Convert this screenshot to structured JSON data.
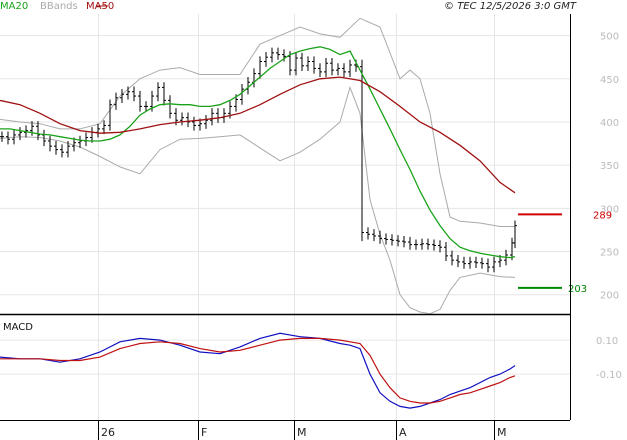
{
  "header": {
    "legend": [
      {
        "name": "MA20",
        "color": "#1aa31a"
      },
      {
        "name": "BBands",
        "color": "#aaaaaa"
      },
      {
        "name": "MA50",
        "color": "#a01010"
      }
    ],
    "copyright": "© TEC 12/5/2026 3:0 GMT"
  },
  "chart_data": [
    {
      "type": "line",
      "panel": "price",
      "y_ticks": [
        "500",
        "450",
        "400",
        "350",
        "300",
        "250",
        "200"
      ],
      "ylim": [
        180,
        525
      ],
      "x_labels": [
        "26",
        "F",
        "M",
        "A",
        "M"
      ],
      "markers": [
        {
          "label": "289",
          "value": 293,
          "color": "#cc0000"
        },
        {
          "label": "203",
          "value": 208,
          "color": "#008800"
        }
      ],
      "series": [
        {
          "role": "ma20",
          "color": "#1aa31a",
          "x": [
            0,
            10,
            20,
            30,
            40,
            50,
            60,
            70,
            80,
            90,
            100,
            110,
            120,
            130,
            140,
            150,
            160,
            170,
            180,
            190,
            200,
            210,
            220,
            230,
            240,
            250,
            260,
            270,
            280,
            290,
            300,
            310,
            320,
            330,
            340,
            350,
            360,
            370,
            380,
            390,
            400,
            410,
            420,
            430,
            440,
            450,
            460,
            470,
            480,
            490,
            500,
            510,
            515
          ],
          "values": [
            392,
            392,
            390,
            388,
            386,
            385,
            383,
            381,
            379,
            378,
            378,
            380,
            385,
            395,
            408,
            415,
            420,
            421,
            420,
            420,
            418,
            418,
            420,
            425,
            432,
            442,
            452,
            462,
            470,
            478,
            482,
            485,
            487,
            484,
            478,
            482,
            460,
            438,
            415,
            392,
            368,
            345,
            320,
            298,
            280,
            265,
            255,
            251,
            248,
            246,
            244,
            243,
            244
          ]
        },
        {
          "role": "ma50",
          "color": "#a01010",
          "x": [
            0,
            20,
            40,
            60,
            80,
            100,
            120,
            140,
            160,
            180,
            200,
            220,
            240,
            260,
            280,
            300,
            320,
            340,
            360,
            380,
            400,
            420,
            440,
            460,
            480,
            500,
            515
          ],
          "values": [
            425,
            420,
            410,
            398,
            390,
            387,
            388,
            392,
            397,
            400,
            402,
            405,
            410,
            420,
            432,
            443,
            450,
            452,
            448,
            435,
            418,
            400,
            388,
            373,
            355,
            330,
            318
          ]
        },
        {
          "role": "bband-upper",
          "color": "#aaaaaa",
          "x": [
            0,
            20,
            40,
            60,
            80,
            100,
            120,
            140,
            160,
            180,
            200,
            220,
            240,
            260,
            280,
            300,
            320,
            340,
            360,
            380,
            400,
            410,
            420,
            430,
            440,
            450,
            460,
            480,
            500,
            515
          ],
          "values": [
            403,
            400,
            398,
            392,
            392,
            398,
            430,
            450,
            460,
            463,
            455,
            455,
            455,
            490,
            500,
            510,
            502,
            498,
            520,
            510,
            450,
            460,
            450,
            410,
            340,
            290,
            285,
            283,
            279,
            279
          ]
        },
        {
          "role": "bband-lower",
          "color": "#aaaaaa",
          "x": [
            0,
            20,
            40,
            60,
            80,
            100,
            120,
            140,
            160,
            180,
            200,
            220,
            240,
            260,
            280,
            300,
            320,
            340,
            350,
            360,
            370,
            380,
            390,
            400,
            410,
            420,
            430,
            440,
            450,
            460,
            480,
            500,
            515
          ],
          "values": [
            381,
            383,
            382,
            378,
            371,
            360,
            348,
            340,
            368,
            380,
            381,
            383,
            385,
            370,
            355,
            365,
            380,
            400,
            440,
            410,
            310,
            270,
            240,
            200,
            185,
            180,
            178,
            183,
            205,
            220,
            225,
            221,
            220
          ]
        },
        {
          "role": "price",
          "color": "#000000",
          "x": [
            2,
            8,
            14,
            20,
            26,
            32,
            38,
            44,
            50,
            56,
            62,
            68,
            74,
            80,
            86,
            92,
            98,
            104,
            110,
            116,
            122,
            128,
            134,
            140,
            146,
            152,
            158,
            164,
            170,
            176,
            182,
            188,
            194,
            200,
            206,
            212,
            218,
            224,
            230,
            236,
            242,
            248,
            254,
            260,
            266,
            272,
            278,
            284,
            290,
            296,
            302,
            308,
            314,
            320,
            326,
            332,
            338,
            344,
            350,
            356,
            362,
            368,
            374,
            380,
            386,
            392,
            398,
            404,
            410,
            416,
            422,
            428,
            434,
            440,
            446,
            452,
            458,
            464,
            470,
            476,
            482,
            488,
            494,
            500,
            506,
            512,
            515
          ],
          "values": [
            383,
            380,
            385,
            388,
            390,
            395,
            385,
            378,
            372,
            368,
            365,
            372,
            376,
            378,
            382,
            388,
            392,
            396,
            420,
            428,
            432,
            435,
            430,
            418,
            418,
            430,
            440,
            425,
            410,
            402,
            405,
            400,
            396,
            398,
            402,
            410,
            405,
            410,
            418,
            426,
            438,
            446,
            456,
            470,
            475,
            480,
            478,
            476,
            460,
            474,
            465,
            470,
            462,
            458,
            468,
            460,
            462,
            458,
            466,
            464,
            272,
            270,
            268,
            265,
            264,
            263,
            262,
            261,
            258,
            258,
            259,
            258,
            257,
            255,
            245,
            240,
            238,
            236,
            238,
            237,
            236,
            232,
            238,
            240,
            246,
            260,
            280
          ]
        }
      ]
    },
    {
      "type": "line",
      "panel": "macd",
      "title": "MACD",
      "y_ticks": [
        "0.10",
        "-0.10"
      ],
      "ylim": [
        -0.37,
        0.23
      ],
      "series": [
        {
          "role": "macd",
          "color": "#1010c0",
          "x": [
            0,
            20,
            40,
            60,
            80,
            100,
            120,
            140,
            160,
            180,
            200,
            220,
            240,
            260,
            280,
            300,
            320,
            340,
            350,
            360,
            370,
            380,
            390,
            400,
            410,
            420,
            430,
            440,
            450,
            460,
            470,
            480,
            490,
            500,
            510,
            515
          ],
          "values": [
            0.0,
            -0.01,
            -0.01,
            -0.03,
            -0.01,
            0.03,
            0.09,
            0.11,
            0.1,
            0.07,
            0.03,
            0.02,
            0.06,
            0.11,
            0.14,
            0.12,
            0.11,
            0.08,
            0.07,
            0.05,
            -0.1,
            -0.21,
            -0.26,
            -0.29,
            -0.3,
            -0.29,
            -0.27,
            -0.25,
            -0.22,
            -0.2,
            -0.18,
            -0.15,
            -0.12,
            -0.1,
            -0.07,
            -0.05
          ]
        },
        {
          "role": "signal",
          "color": "#c01010",
          "x": [
            0,
            20,
            40,
            60,
            80,
            100,
            120,
            140,
            160,
            180,
            200,
            220,
            240,
            260,
            280,
            300,
            320,
            340,
            350,
            360,
            370,
            380,
            390,
            400,
            410,
            420,
            430,
            440,
            450,
            460,
            470,
            480,
            490,
            500,
            510,
            515
          ],
          "values": [
            -0.01,
            -0.01,
            -0.01,
            -0.02,
            -0.02,
            0.0,
            0.05,
            0.08,
            0.09,
            0.08,
            0.05,
            0.03,
            0.04,
            0.07,
            0.1,
            0.11,
            0.11,
            0.1,
            0.09,
            0.08,
            0.01,
            -0.1,
            -0.18,
            -0.24,
            -0.26,
            -0.27,
            -0.27,
            -0.26,
            -0.24,
            -0.22,
            -0.21,
            -0.19,
            -0.17,
            -0.15,
            -0.12,
            -0.11
          ]
        }
      ]
    }
  ]
}
